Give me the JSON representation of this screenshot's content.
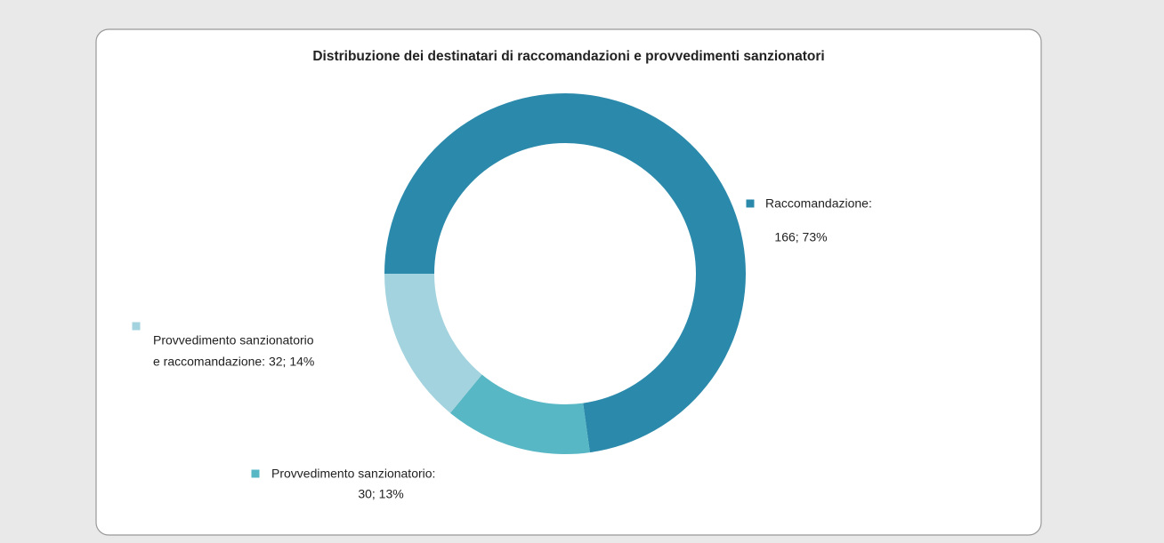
{
  "chart_data": {
    "type": "donut",
    "title": "Distribuzione dei destinatari di raccomandazioni e provvedimenti sanzionatori",
    "values": [
      166,
      30,
      32
    ],
    "value_labels": [
      [
        "Raccomandazione:",
        "166; 73%"
      ],
      [
        "Provvedimento sanzionatorio:",
        "30; 13%"
      ],
      [
        "Provvedimento sanzionatorio",
        "e raccomandazione: 32; 14%"
      ]
    ],
    "colors": [
      "#2b8aab",
      "#57b7c4",
      "#a3d3de"
    ]
  }
}
